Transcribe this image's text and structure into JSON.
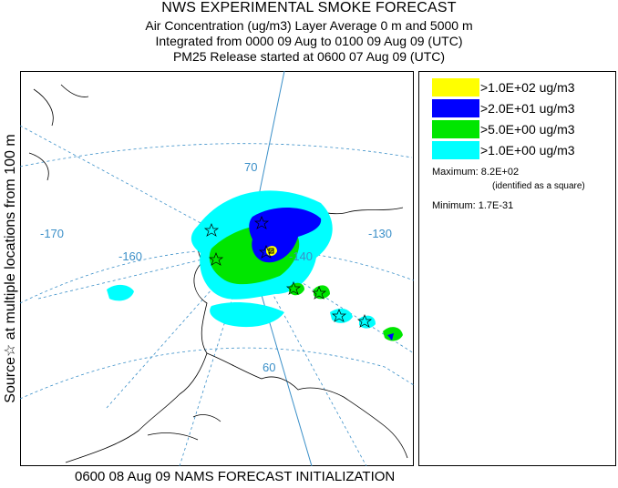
{
  "header": {
    "title": "NWS EXPERIMENTAL SMOKE FORECAST",
    "line2": "Air Concentration (ug/m3) Layer Average    0 m and  5000 m",
    "line3": "Integrated from 0000 09 Aug to 0100 09 Aug 09 (UTC)",
    "line4": "PM25 Release started at 0600 07 Aug 09 (UTC)"
  },
  "side_label": "Source☆  at multiple locations  from  100 m",
  "map": {
    "longitude_labels": [
      "-170",
      "-160",
      "-140",
      "-130"
    ],
    "latitude_labels": [
      "70",
      "60"
    ]
  },
  "legend": {
    "entries": [
      {
        "label": ">1.0E+02 ug/m3",
        "color": "#ffff00"
      },
      {
        "label": ">2.0E+01 ug/m3",
        "color": "#0000ff"
      },
      {
        "label": ">5.0E+00 ug/m3",
        "color": "#00e600"
      },
      {
        "label": ">1.0E+00 ug/m3",
        "color": "#00ffff"
      }
    ],
    "maximum": "Maximum: 8.2E+02",
    "maximum_note": "(identified as a square)",
    "minimum": "Minimum: 1.7E-31"
  },
  "footer": "0600 08 Aug 09 NAMS FORECAST INITIALIZATION",
  "colors": {
    "graticule": "#3a8fc8",
    "coast": "#000000",
    "low": "#00ffff",
    "mid": "#00e600",
    "high": "#0000ff",
    "max": "#ffff00"
  }
}
